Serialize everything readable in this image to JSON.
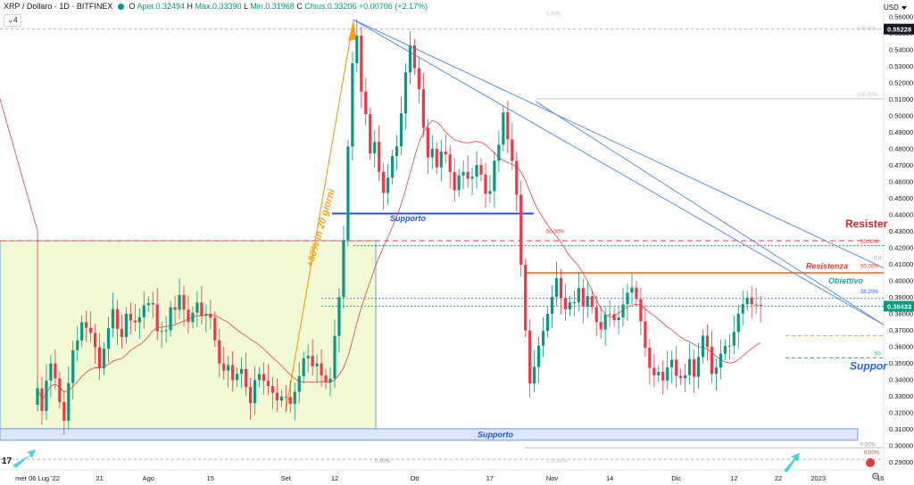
{
  "header": {
    "symbol": "XRP / Dollaro · 1D · BITFINEX",
    "open_label": "O",
    "open_value": "Aper.0.32494",
    "high_label": "H",
    "high_value": "Max.0.33390",
    "low_label": "L",
    "low_value": "Min.0.31968",
    "close_label": "C",
    "close_value": "Chius.0.33206",
    "change_value": "+0.00706 (+2.17%)",
    "indicator_count": "4"
  },
  "currency": "USD",
  "colors": {
    "up": "#089981",
    "down": "#f23645",
    "ma": "#f5a09a",
    "trend": "#5b8def",
    "resistance": "#e8844a",
    "support_line": "#2157d6",
    "box_fill": "#f2f9d5",
    "box_border": "#7a9bd6",
    "dashed_red": "#f23645",
    "arrow": "#ff9f1a"
  },
  "chart_data": {
    "type": "candlestick",
    "title": "XRP / Dollaro · 1D · BITFINEX",
    "ylim": [
      0.285,
      0.565
    ],
    "y_ticks": [
      "0.56000",
      "0.55000",
      "0.54000",
      "0.53000",
      "0.52000",
      "0.51000",
      "0.50000",
      "0.49000",
      "0.48000",
      "0.47000",
      "0.46000",
      "0.45000",
      "0.44000",
      "0.43000",
      "0.42000",
      "0.41000",
      "0.40000",
      "0.39000",
      "0.38000",
      "0.37000",
      "0.36000",
      "0.35000",
      "0.34000",
      "0.33000",
      "0.32000",
      "0.31000",
      "0.30000",
      "0.29000"
    ],
    "y_tick_values": [
      0.56,
      0.55,
      0.54,
      0.53,
      0.52,
      0.51,
      0.5,
      0.49,
      0.48,
      0.47,
      0.46,
      0.45,
      0.44,
      0.43,
      0.42,
      0.41,
      0.4,
      0.39,
      0.38,
      0.37,
      0.36,
      0.35,
      0.34,
      0.33,
      0.32,
      0.31,
      0.3,
      0.29
    ],
    "x_ticks": [
      "mer 06 Lug '22",
      "21",
      "Ago",
      "15",
      "Set",
      "12",
      "Ott",
      "17",
      "Nov",
      "14",
      "Dic",
      "12",
      "22",
      "2023",
      "16"
    ],
    "x_tick_index": [
      0,
      14,
      25,
      39,
      56,
      67,
      85,
      102,
      116,
      129,
      144,
      157,
      167,
      176,
      190
    ],
    "closes": [
      0.3345,
      0.3208,
      0.3392,
      0.3496,
      0.3405,
      0.3262,
      0.3149,
      0.3377,
      0.3576,
      0.3635,
      0.3746,
      0.3712,
      0.3681,
      0.3594,
      0.3466,
      0.3585,
      0.3709,
      0.3826,
      0.3706,
      0.3656,
      0.3797,
      0.3757,
      0.3745,
      0.3776,
      0.3849,
      0.3862,
      0.3853,
      0.3691,
      0.3692,
      0.3698,
      0.3836,
      0.3821,
      0.3911,
      0.3822,
      0.3747,
      0.3803,
      0.3865,
      0.3786,
      0.3797,
      0.3773,
      0.3636,
      0.3496,
      0.3452,
      0.3486,
      0.3395,
      0.3433,
      0.3462,
      0.3353,
      0.3255,
      0.3395,
      0.3432,
      0.3391,
      0.3359,
      0.3318,
      0.3271,
      0.3295,
      0.3292,
      0.3251,
      0.3324,
      0.3419,
      0.3527,
      0.3542,
      0.3479,
      0.3496,
      0.3424,
      0.3381,
      0.3404,
      0.3663,
      0.3898,
      0.4244,
      0.4811,
      0.5316,
      0.5484,
      0.5144,
      0.5007,
      0.4769,
      0.4839,
      0.4658,
      0.4529,
      0.4622,
      0.4753,
      0.4812,
      0.5012,
      0.5261,
      0.5424,
      0.5286,
      0.5158,
      0.4925,
      0.4745,
      0.4797,
      0.4685,
      0.4781,
      0.4763,
      0.4656,
      0.4546,
      0.4636,
      0.4657,
      0.4616,
      0.4628,
      0.4699,
      0.4641,
      0.4524,
      0.4541,
      0.4725,
      0.4822,
      0.5018,
      0.4854,
      0.4724,
      0.4519,
      0.4094,
      0.3696,
      0.3375,
      0.3475,
      0.3604,
      0.3693,
      0.3797,
      0.3899,
      0.4013,
      0.3893,
      0.3824,
      0.3866,
      0.3866,
      0.3953,
      0.3841,
      0.3904,
      0.3838,
      0.3747,
      0.3702,
      0.3791,
      0.3795,
      0.3759,
      0.3775,
      0.3854,
      0.3925,
      0.3956,
      0.3886,
      0.3751,
      0.3591,
      0.3469,
      0.3424,
      0.3445,
      0.3392,
      0.3473,
      0.3519,
      0.3421,
      0.3406,
      0.3425,
      0.3522,
      0.3415,
      0.3535,
      0.3664,
      0.3597,
      0.3432,
      0.3471,
      0.3555,
      0.3603,
      0.3604,
      0.3687,
      0.3798,
      0.3855,
      0.3895,
      0.3854,
      0.3851,
      0.3845
    ],
    "ma_series": "SMA (red line) overlay",
    "annotations": {
      "pump_label": "+80% in 20 giorni",
      "supporto_mid": "Supporto",
      "supporto_bottom": "Supporto",
      "resistenza_small": "Resistenza",
      "resistenza_big": "Resister",
      "obiettivo": "Obiettivo",
      "supporto_right": "Suppor",
      "fib_0_top": "0.00%",
      "fib_100_top": "100.00%",
      "fib_100_mid": "100.00%",
      "fib_50_mid": "50.00%",
      "fib_50_right": "50.00%",
      "fib_0_right": "0.0",
      "fib_50_right2": "50.00%",
      "fib_382": "38.20%",
      "fib_50_small": "50.",
      "fib_0_bottom1": "0.00%",
      "fib_0_bottom2": "0.00%",
      "fib_100_bottom": "100.00%",
      "fib_0_bottom3": "0.00%"
    },
    "price_labels": {
      "high_marker": "0.55228",
      "current": "0.38433"
    },
    "grid": false,
    "legend": "none"
  }
}
